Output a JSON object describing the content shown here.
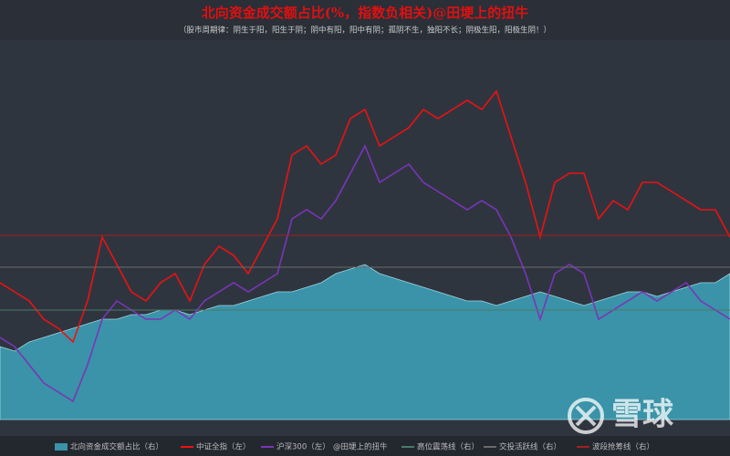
{
  "chart_data": {
    "type": "line",
    "title": "北向资金成交额占比(%，指数负相关)@田埂上的扭牛",
    "subtitle": "（股市周期律：阴生于阳，阳生于阴；阴中有阳，阳中有阴；孤阴不生，独阳不长；阴极生阳，阳极生阴！）",
    "categories": [
      null,
      null,
      null,
      null,
      null,
      null,
      null,
      null,
      null,
      null,
      null,
      null,
      null,
      null,
      null,
      null,
      null,
      null,
      null,
      null,
      null,
      null,
      null,
      null,
      null,
      null,
      null,
      null,
      null,
      null,
      null,
      null,
      null,
      null,
      null,
      null,
      null,
      null,
      null,
      null,
      null,
      null,
      null,
      null,
      null,
      null,
      null,
      null,
      null,
      null,
      null
    ],
    "ylim": [
      0,
      415
    ],
    "y2lim": [
      0,
      415
    ],
    "series": [
      {
        "name": "北向资金成交额占比（右）",
        "color": "#3a93a8",
        "axis": "y2",
        "type": "area",
        "values": [
          80,
          75,
          85,
          90,
          95,
          100,
          105,
          110,
          110,
          115,
          115,
          120,
          120,
          115,
          120,
          125,
          125,
          130,
          135,
          140,
          140,
          145,
          150,
          160,
          165,
          170,
          160,
          155,
          150,
          145,
          140,
          135,
          130,
          130,
          125,
          130,
          135,
          140,
          135,
          130,
          125,
          130,
          135,
          140,
          140,
          135,
          140,
          145,
          150,
          150,
          160
        ]
      },
      {
        "name": "中证全指（左）",
        "color": "#ee1111",
        "values": [
          150,
          140,
          130,
          110,
          100,
          85,
          130,
          200,
          170,
          140,
          130,
          150,
          160,
          130,
          170,
          190,
          180,
          160,
          190,
          220,
          290,
          300,
          280,
          290,
          330,
          340,
          300,
          310,
          320,
          340,
          330,
          340,
          350,
          340,
          360,
          310,
          260,
          200,
          260,
          270,
          270,
          220,
          240,
          230,
          260,
          260,
          250,
          240,
          230,
          230,
          200
        ]
      },
      {
        "name": "沪深300（左）",
        "color": "#7a35b8",
        "values": [
          90,
          80,
          60,
          40,
          30,
          20,
          60,
          110,
          130,
          120,
          110,
          110,
          120,
          110,
          130,
          140,
          150,
          140,
          150,
          160,
          220,
          230,
          220,
          240,
          270,
          300,
          260,
          270,
          280,
          260,
          250,
          240,
          230,
          240,
          230,
          200,
          160,
          110,
          160,
          170,
          160,
          110,
          120,
          130,
          140,
          130,
          140,
          150,
          130,
          120,
          110
        ]
      }
    ],
    "legend_note": "@田埂上的扭牛",
    "reference_lines": [
      {
        "name": "高位震荡线（右）",
        "color": "#4a7a6a",
        "value": 120
      },
      {
        "name": "交投活跃线（右）",
        "color": "#6a6a6a",
        "value": 167
      },
      {
        "name": "波段抢筹线（右）",
        "color": "#a02020",
        "value": 202
      }
    ],
    "watermark": "雪球"
  }
}
